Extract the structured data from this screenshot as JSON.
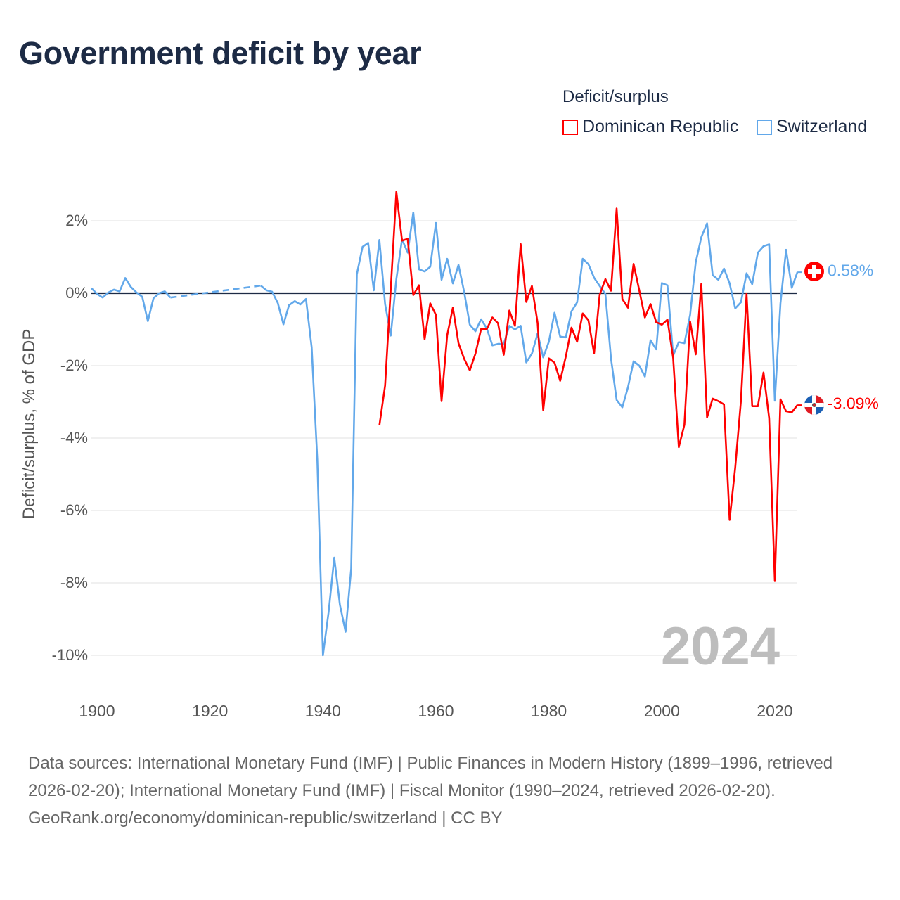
{
  "title": "Government deficit by year",
  "legend": {
    "title": "Deficit/surplus",
    "items": [
      {
        "label": "Dominican Republic",
        "color": "#ff0000"
      },
      {
        "label": "Switzerland",
        "color": "#62a8ea"
      }
    ]
  },
  "year_watermark": "2024",
  "end_labels": {
    "switzerland": "0.58%",
    "dominican_republic": "-3.09%"
  },
  "footer": {
    "sources": "Data sources: International Monetary Fund (IMF) | Public Finances in Modern History (1899–1996, retrieved 2026-02-20); International Monetary Fund (IMF) | Fiscal Monitor (1990–2024, retrieved 2026-02-20).",
    "credit": "GeoRank.org/economy/dominican-republic/switzerland | CC BY"
  },
  "chart_data": {
    "type": "line",
    "title": "Government deficit by year",
    "xlabel": "",
    "ylabel": "Deficit/surplus, % of GDP",
    "xlim": [
      1899,
      2024
    ],
    "ylim": [
      -11,
      3
    ],
    "grid": true,
    "legend_position": "top-right",
    "x_ticks": [
      "1900",
      "1920",
      "1940",
      "1960",
      "1980",
      "2000",
      "2020"
    ],
    "y_ticks": [
      "2%",
      "0%",
      "-2%",
      "-4%",
      "-6%",
      "-8%",
      "-10%"
    ],
    "y_tick_values": [
      2,
      0,
      -2,
      -4,
      -6,
      -8,
      -10
    ],
    "x_tick_values": [
      1900,
      1920,
      1940,
      1960,
      1980,
      2000,
      2020
    ],
    "series": [
      {
        "name": "Switzerland",
        "color": "#62a8ea",
        "x_start": 1899,
        "values": [
          0.14,
          -0.02,
          -0.12,
          0.02,
          0.1,
          0.05,
          0.42,
          0.17,
          0.02,
          -0.1,
          -0.77,
          -0.14,
          0.0,
          0.05,
          -0.12,
          null,
          null,
          null,
          null,
          null,
          null,
          null,
          null,
          null,
          null,
          null,
          null,
          null,
          null,
          null,
          0.21,
          0.08,
          0.04,
          -0.27,
          -0.86,
          -0.33,
          -0.22,
          -0.31,
          -0.16,
          -1.5,
          -4.6,
          -10.0,
          -8.8,
          -7.3,
          -8.6,
          -9.35,
          -7.6,
          0.52,
          1.28,
          1.39,
          0.08,
          1.47,
          -0.3,
          -1.17,
          0.39,
          1.49,
          1.12,
          2.23,
          0.66,
          0.6,
          0.73,
          1.94,
          0.37,
          0.95,
          0.27,
          0.78,
          0.04,
          -0.87,
          -1.05,
          -0.72,
          -0.97,
          -1.44,
          -1.4,
          -1.4,
          -0.9,
          -1.0,
          -0.9,
          -1.91,
          -1.67,
          -1.11,
          -1.77,
          -1.34,
          -0.54,
          -1.2,
          -1.22,
          -0.5,
          -0.25,
          0.95,
          0.8,
          0.43,
          0.2,
          -0.02,
          -1.8,
          -2.95,
          -3.15,
          -2.6,
          -1.88,
          -2.0,
          -2.3,
          -1.3,
          -1.55,
          0.28,
          0.22,
          -1.72,
          -1.35,
          -1.38,
          -0.6,
          0.85,
          1.55,
          1.93,
          0.5,
          0.37,
          0.68,
          0.27,
          -0.42,
          -0.25,
          0.55,
          0.25,
          1.12,
          1.3,
          1.35,
          -2.97,
          -0.28,
          1.2,
          0.15,
          0.58
        ]
      },
      {
        "name": "Dominican Republic",
        "color": "#ff0000",
        "x_start": 1950,
        "values": [
          -3.65,
          -2.55,
          0.1,
          2.8,
          1.45,
          1.5,
          -0.05,
          0.22,
          -1.27,
          -0.28,
          -0.6,
          -2.98,
          -1.16,
          -0.4,
          -1.38,
          -1.81,
          -2.13,
          -1.67,
          -0.99,
          -0.99,
          -0.67,
          -0.83,
          -1.7,
          -0.48,
          -0.9,
          1.36,
          -0.24,
          0.2,
          -0.82,
          -3.23,
          -1.8,
          -1.92,
          -2.42,
          -1.75,
          -0.95,
          -1.34,
          -0.56,
          -0.75,
          -1.66,
          -0.04,
          0.39,
          0.07,
          2.34,
          -0.16,
          -0.4,
          0.81,
          0.08,
          -0.67,
          -0.3,
          -0.8,
          -0.87,
          -0.73,
          -1.79,
          -4.25,
          -3.63,
          -0.78,
          -1.69,
          0.26,
          -3.43,
          -2.91,
          -2.98,
          -3.07,
          -6.26,
          -4.81,
          -2.97,
          -0.02,
          -3.12,
          -3.12,
          -2.19,
          -3.45,
          -7.95,
          -2.93,
          -3.26,
          -3.29,
          -3.09
        ]
      }
    ]
  }
}
